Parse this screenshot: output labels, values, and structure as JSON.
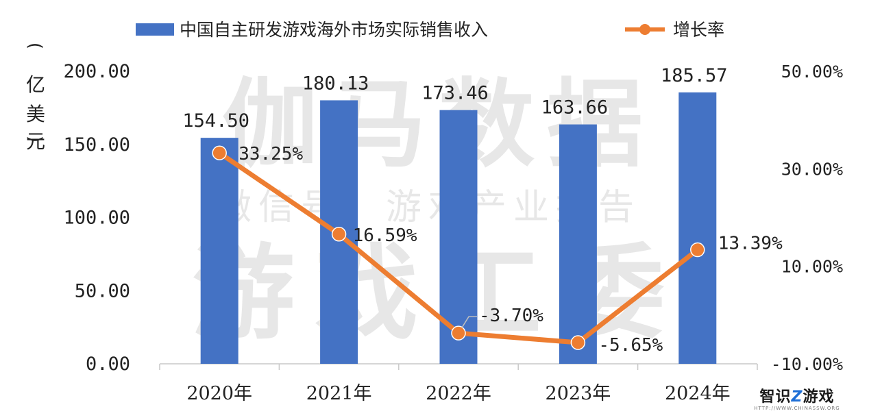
{
  "chart_data": {
    "type": "bar",
    "categories": [
      "2020年",
      "2021年",
      "2022年",
      "2023年",
      "2024年"
    ],
    "series": [
      {
        "name": "中国自主研发游戏海外市场实际销售收入",
        "kind": "bar",
        "axis": "left",
        "color": "#4472C4",
        "values": [
          154.5,
          180.13,
          173.46,
          163.66,
          185.57
        ],
        "labels": [
          "154.50",
          "180.13",
          "173.46",
          "163.66",
          "185.57"
        ]
      },
      {
        "name": "增长率",
        "kind": "line",
        "axis": "right",
        "color": "#ED7D31",
        "values": [
          33.25,
          16.59,
          -3.7,
          -5.65,
          13.39
        ],
        "labels": [
          "33.25%",
          "16.59%",
          "-3.70%",
          "-5.65%",
          "13.39%"
        ]
      }
    ],
    "ylabel": "（亿美元）",
    "ylim": [
      0,
      200
    ],
    "y_ticks": [
      "0.00",
      "50.00",
      "100.00",
      "150.00",
      "200.00"
    ],
    "y2lim": [
      -10,
      50
    ],
    "y2_ticks": [
      "-10.00%",
      "10.00%",
      "30.00%",
      "50.00%"
    ],
    "legend_position": "top",
    "grid": false
  },
  "watermark": {
    "line1": "伽马数据",
    "line2": "微信号：游戏产业报告",
    "line3": "游戏工委"
  },
  "brand": {
    "main_prefix": "智识",
    "main_z": "Z",
    "main_suffix": "游戏",
    "sub": "HTTP://WWW.CHINASSW.ORG"
  }
}
